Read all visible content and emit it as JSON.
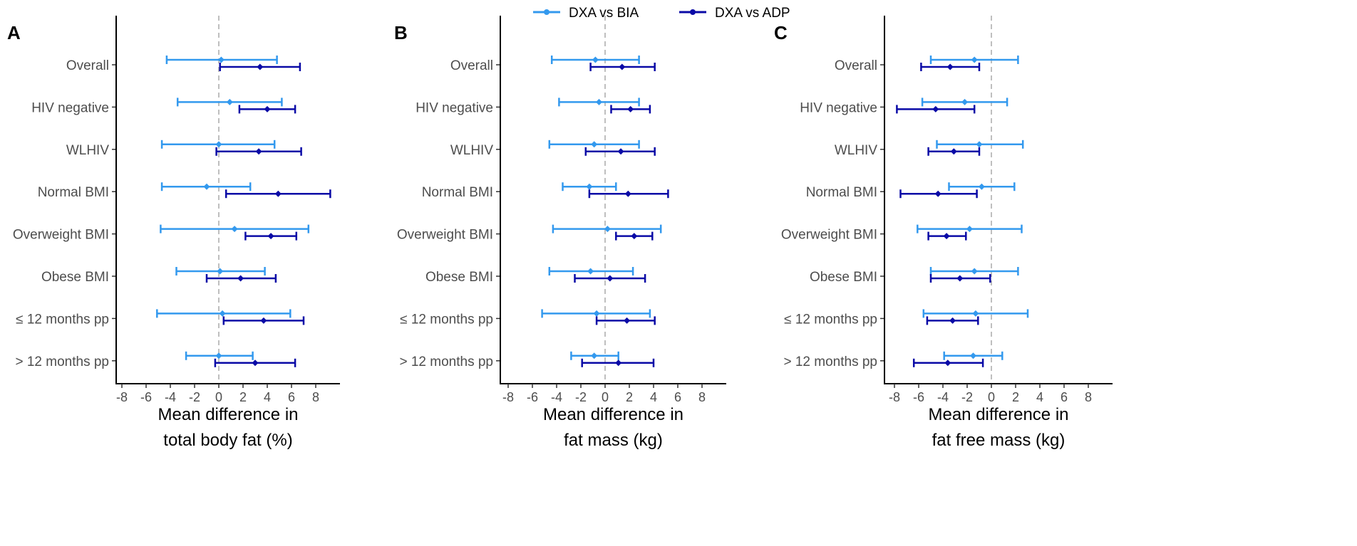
{
  "legend": {
    "items": [
      {
        "label": "DXA vs BIA",
        "color": "#3399ee"
      },
      {
        "label": "DXA vs ADP",
        "color": "#0a0aa6"
      }
    ]
  },
  "chart_data": [
    {
      "type": "forest",
      "panel": "A",
      "xlabel_line1": "Mean difference in",
      "xlabel_line2": "total body fat (%)",
      "xlim": [
        -9,
        10
      ],
      "xticks": [
        -8,
        -6,
        -4,
        -2,
        0,
        2,
        4,
        6,
        8
      ],
      "xtick_labels": [
        "-8",
        "-6",
        "-4",
        "-2",
        "0",
        "2",
        "4",
        "6",
        "8"
      ],
      "reference_line": 0,
      "categories": [
        "Overall",
        "HIV negative",
        "WLHIV",
        "Normal BMI",
        "Overweight BMI",
        "Obese BMI",
        "≤ 12 months pp",
        "> 12 months pp"
      ],
      "series": [
        {
          "name": "DXA vs BIA",
          "estimate": [
            0.2,
            0.9,
            0.0,
            -1.0,
            1.3,
            0.1,
            0.3,
            0.0
          ],
          "lower": [
            -4.3,
            -3.4,
            -4.7,
            -4.7,
            -4.8,
            -3.5,
            -5.1,
            -2.7
          ],
          "upper": [
            4.8,
            5.2,
            4.6,
            2.6,
            7.4,
            3.8,
            5.9,
            2.8
          ]
        },
        {
          "name": "DXA vs ADP",
          "estimate": [
            3.4,
            4.0,
            3.3,
            4.9,
            4.3,
            1.8,
            3.7,
            3.0
          ],
          "lower": [
            0.1,
            1.7,
            -0.2,
            0.6,
            2.2,
            -1.0,
            0.4,
            -0.3
          ],
          "upper": [
            6.7,
            6.3,
            6.8,
            9.2,
            6.4,
            4.7,
            7.0,
            6.3
          ]
        }
      ]
    },
    {
      "type": "forest",
      "panel": "B",
      "xlabel_line1": "Mean difference in",
      "xlabel_line2": "fat mass (kg)",
      "xlim": [
        -9,
        10
      ],
      "xticks": [
        -8,
        -6,
        -4,
        -2,
        0,
        2,
        4,
        6,
        8
      ],
      "xtick_labels": [
        "-8",
        "-6",
        "-4",
        "-2",
        "0",
        "2",
        "4",
        "6",
        "8"
      ],
      "reference_line": 0,
      "categories": [
        "Overall",
        "HIV negative",
        "WLHIV",
        "Normal BMI",
        "Overweight BMI",
        "Obese BMI",
        "≤ 12 months pp",
        "> 12 months pp"
      ],
      "series": [
        {
          "name": "DXA vs BIA",
          "estimate": [
            -0.8,
            -0.5,
            -0.9,
            -1.3,
            0.2,
            -1.2,
            -0.7,
            -0.9
          ],
          "lower": [
            -4.4,
            -3.8,
            -4.6,
            -3.5,
            -4.3,
            -4.6,
            -5.2,
            -2.8
          ],
          "upper": [
            2.8,
            2.8,
            2.8,
            0.9,
            4.6,
            2.3,
            3.7,
            1.1
          ]
        },
        {
          "name": "DXA vs ADP",
          "estimate": [
            1.4,
            2.1,
            1.3,
            1.9,
            2.4,
            0.4,
            1.8,
            1.1
          ],
          "lower": [
            -1.2,
            0.5,
            -1.6,
            -1.3,
            0.9,
            -2.5,
            -0.7,
            -1.9
          ],
          "upper": [
            4.1,
            3.7,
            4.1,
            5.2,
            3.9,
            3.3,
            4.1,
            4.0
          ]
        }
      ]
    },
    {
      "type": "forest",
      "panel": "C",
      "xlabel_line1": "Mean difference in",
      "xlabel_line2": "fat free mass (kg)",
      "xlim": [
        -9,
        10
      ],
      "xticks": [
        -8,
        -6,
        -4,
        -2,
        0,
        2,
        4,
        6,
        8
      ],
      "xtick_labels": [
        "-8",
        "-6",
        "-4",
        "-2",
        "0",
        "2",
        "4",
        "6",
        "8"
      ],
      "reference_line": 0,
      "categories": [
        "Overall",
        "HIV negative",
        "WLHIV",
        "Normal BMI",
        "Overweight BMI",
        "Obese BMI",
        "≤ 12 months pp",
        "> 12 months pp"
      ],
      "series": [
        {
          "name": "DXA vs BIA",
          "estimate": [
            -1.4,
            -2.2,
            -1.0,
            -0.8,
            -1.8,
            -1.4,
            -1.3,
            -1.5
          ],
          "lower": [
            -5.0,
            -5.7,
            -4.5,
            -3.5,
            -6.1,
            -5.0,
            -5.6,
            -3.9
          ],
          "upper": [
            2.2,
            1.3,
            2.6,
            1.9,
            2.5,
            2.2,
            3.0,
            0.9
          ]
        },
        {
          "name": "DXA vs ADP",
          "estimate": [
            -3.4,
            -4.6,
            -3.1,
            -4.4,
            -3.7,
            -2.6,
            -3.2,
            -3.6
          ],
          "lower": [
            -5.8,
            -7.8,
            -5.2,
            -7.5,
            -5.2,
            -5.0,
            -5.3,
            -6.4
          ],
          "upper": [
            -1.0,
            -1.4,
            -1.0,
            -1.2,
            -2.1,
            -0.1,
            -1.1,
            -0.7
          ]
        }
      ]
    }
  ]
}
